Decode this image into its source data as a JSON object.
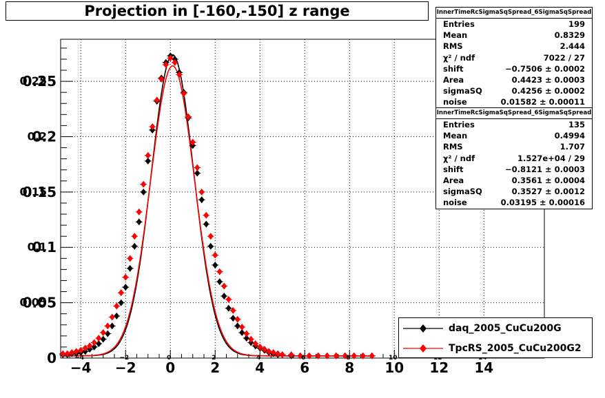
{
  "title": "Projection in [-160,-150] z range",
  "stats_boxes": [
    {
      "header": "InnerTimeRcSigmaSqSpread_6SigmaSqSpread",
      "rows": [
        {
          "label": "Entries",
          "value": "199"
        },
        {
          "label": "Mean",
          "value": "0.8329"
        },
        {
          "label": "RMS",
          "value": "2.444"
        },
        {
          "label": "χ² / ndf",
          "value": "7022 / 27"
        },
        {
          "label": "shift",
          "value": "−0.7506 ± 0.0002"
        },
        {
          "label": "Area",
          "value": "0.4423 ± 0.0003"
        },
        {
          "label": "sigmaSQ",
          "value": "0.4256 ± 0.0002"
        },
        {
          "label": "noise",
          "value": "0.01582 ± 0.00011"
        }
      ]
    },
    {
      "header": "InnerTimeRcSigmaSqSpread_6SigmaSqSpread",
      "rows": [
        {
          "label": "Entries",
          "value": "135"
        },
        {
          "label": "Mean",
          "value": "0.4994"
        },
        {
          "label": "RMS",
          "value": "1.707"
        },
        {
          "label": "χ² / ndf",
          "value": "1.527e+04 / 29"
        },
        {
          "label": "shift",
          "value": "−0.8121 ± 0.0003"
        },
        {
          "label": "Area",
          "value": "0.3561 ± 0.0004"
        },
        {
          "label": "sigmaSQ",
          "value": "0.3527 ± 0.0012"
        },
        {
          "label": "noise",
          "value": "0.03195 ± 0.00016"
        }
      ]
    }
  ],
  "colors": {
    "series1": "#000000",
    "series2": "#ff0000",
    "grid": "#000000",
    "background": "#ffffff"
  },
  "chart_data": {
    "type": "scatter",
    "title": "Projection in [-160,-150] z range",
    "xlabel": "",
    "ylabel": "",
    "xlim": [
      -4.9,
      16.7
    ],
    "ylim": [
      0,
      0.288
    ],
    "grid": true,
    "legend_position": "bottom-right",
    "x_ticks": [
      -4,
      -2,
      0,
      2,
      4,
      6,
      8,
      10,
      12,
      14
    ],
    "x_tick_labels": [
      "−4",
      "−2",
      "0",
      "2",
      "4",
      "6",
      "8",
      "10",
      "12",
      "14"
    ],
    "x_small_labels": [
      "−4",
      "−2",
      "0",
      "2",
      "4",
      "6",
      "8",
      "10",
      "12",
      "14"
    ],
    "y_ticks": [
      0,
      0.05,
      0.1,
      0.15,
      0.2,
      0.25
    ],
    "y_tick_labels": [
      "0",
      "0.05",
      "0.1",
      "0.15",
      "0.2",
      "0.25"
    ],
    "y_overlay_labels": [
      "",
      "0.05",
      "0.1",
      "0.15",
      "0.2",
      "0.25"
    ],
    "series": [
      {
        "name": "daq_2005_CuCu200G",
        "color": "#000000",
        "marker": "diamond",
        "x": [
          -4.8,
          -4.6,
          -4.4,
          -4.2,
          -4.0,
          -3.8,
          -3.6,
          -3.4,
          -3.2,
          -3.0,
          -2.8,
          -2.6,
          -2.4,
          -2.2,
          -2.0,
          -1.8,
          -1.6,
          -1.4,
          -1.2,
          -1.0,
          -0.8,
          -0.6,
          -0.4,
          -0.2,
          0.0,
          0.2,
          0.4,
          0.6,
          0.8,
          1.0,
          1.2,
          1.4,
          1.6,
          1.8,
          2.0,
          2.2,
          2.4,
          2.6,
          2.8,
          3.0,
          3.2,
          3.4,
          3.6,
          3.8,
          4.0,
          4.2,
          4.4,
          4.6,
          4.8,
          5.0,
          5.4,
          5.8,
          6.2,
          6.6,
          7.0,
          7.4,
          7.8,
          8.2,
          8.6,
          9.0
        ],
        "y": [
          0.003,
          0.003,
          0.004,
          0.004,
          0.005,
          0.006,
          0.008,
          0.01,
          0.013,
          0.017,
          0.022,
          0.029,
          0.038,
          0.05,
          0.064,
          0.081,
          0.101,
          0.123,
          0.15,
          0.178,
          0.206,
          0.232,
          0.253,
          0.267,
          0.273,
          0.27,
          0.258,
          0.24,
          0.217,
          0.192,
          0.167,
          0.143,
          0.121,
          0.101,
          0.084,
          0.069,
          0.056,
          0.045,
          0.036,
          0.029,
          0.023,
          0.018,
          0.014,
          0.011,
          0.009,
          0.007,
          0.005,
          0.004,
          0.003,
          0.003,
          0.002,
          0.002,
          0.002,
          0.002,
          0.002,
          0.002,
          0.002,
          0.002,
          0.002,
          0.002
        ]
      },
      {
        "name": "TpcRS_2005_CuCu200G2",
        "color": "#ff0000",
        "marker": "diamond",
        "x": [
          -4.8,
          -4.6,
          -4.4,
          -4.2,
          -4.0,
          -3.8,
          -3.6,
          -3.4,
          -3.2,
          -3.0,
          -2.8,
          -2.6,
          -2.4,
          -2.2,
          -2.0,
          -1.8,
          -1.6,
          -1.4,
          -1.2,
          -1.0,
          -0.8,
          -0.6,
          -0.4,
          -0.2,
          0.0,
          0.2,
          0.4,
          0.6,
          0.8,
          1.0,
          1.2,
          1.4,
          1.6,
          1.8,
          2.0,
          2.2,
          2.4,
          2.6,
          2.8,
          3.0,
          3.2,
          3.4,
          3.6,
          3.8,
          4.0,
          4.2,
          4.4,
          4.6,
          4.8,
          5.0,
          5.4,
          5.8,
          6.2,
          6.6,
          7.0,
          7.4,
          7.8,
          8.2,
          8.6,
          9.0
        ],
        "y": [
          0.004,
          0.004,
          0.005,
          0.006,
          0.007,
          0.009,
          0.011,
          0.014,
          0.018,
          0.023,
          0.029,
          0.037,
          0.047,
          0.059,
          0.073,
          0.09,
          0.11,
          0.132,
          0.157,
          0.183,
          0.209,
          0.233,
          0.252,
          0.265,
          0.271,
          0.267,
          0.256,
          0.239,
          0.218,
          0.195,
          0.172,
          0.15,
          0.129,
          0.11,
          0.093,
          0.078,
          0.065,
          0.053,
          0.043,
          0.035,
          0.028,
          0.022,
          0.017,
          0.013,
          0.01,
          0.008,
          0.006,
          0.005,
          0.004,
          0.003,
          0.003,
          0.002,
          0.002,
          0.002,
          0.002,
          0.002,
          0.002,
          0.002,
          0.002,
          0.002
        ]
      }
    ],
    "fit_curves": [
      {
        "series": "daq_2005_CuCu200G",
        "color": "#000000",
        "peak_y": 0.272,
        "center_x": 0.1,
        "sigma": 0.95
      },
      {
        "series": "TpcRS_2005_CuCu200G2",
        "color": "#ff0000",
        "peak_y": 0.262,
        "center_x": 0.1,
        "sigma": 0.98
      }
    ]
  }
}
